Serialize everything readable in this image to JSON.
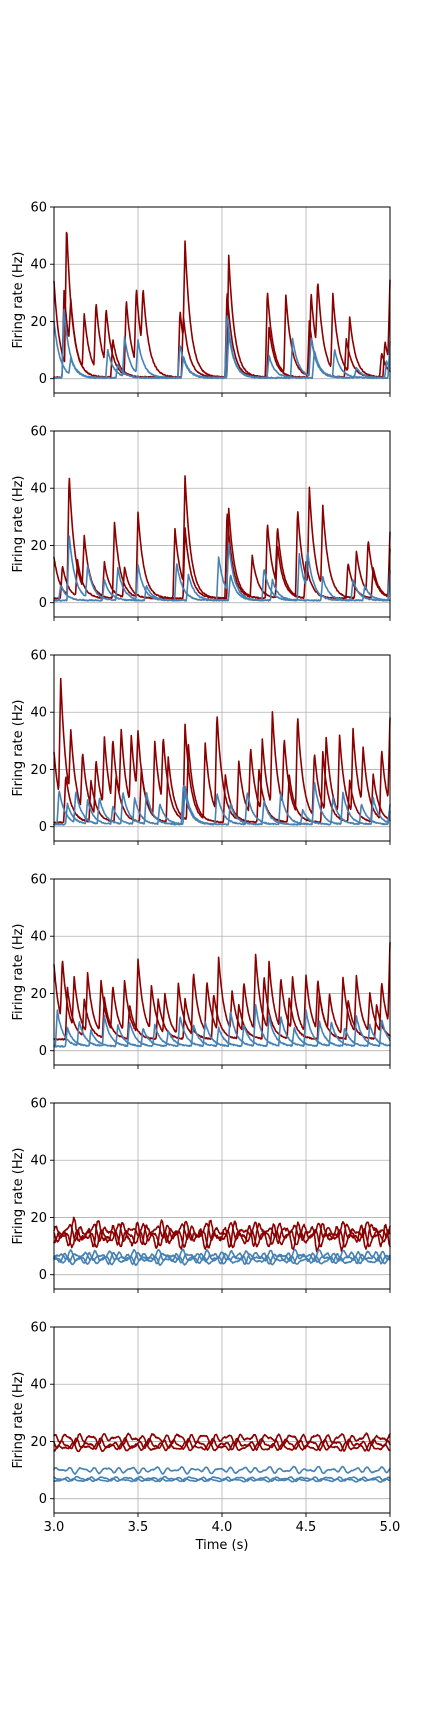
{
  "figure": {
    "xlabel": "Time (s)"
  },
  "colors": {
    "excitatory": "#8b0000",
    "inhibitory": "#4682b4"
  },
  "chart_data": [
    {
      "type": "line",
      "ylabel": "Firing rate (Hz)",
      "xlim": [
        3.0,
        5.0
      ],
      "ylim": [
        -5,
        60
      ],
      "xticks": [
        3.0,
        3.5,
        4.0,
        4.5,
        5.0
      ],
      "xtick_labels": [
        "3.0",
        "3.5",
        "4.0",
        "4.5",
        "5.0"
      ],
      "yticks": [
        0,
        20,
        40,
        60
      ],
      "ytick_labels": [
        "0",
        "20",
        "40",
        "60"
      ],
      "grid": true,
      "series": [
        {
          "color": "#8b0000",
          "baseline": 0.5,
          "x": [
            3.0,
            3.075,
            3.18,
            3.25,
            3.31,
            3.43,
            3.49,
            3.53,
            3.75,
            3.78,
            4.04,
            4.27,
            4.38,
            4.53,
            4.57,
            4.66,
            4.76,
            4.97,
            5.0
          ],
          "values": [
            34,
            50,
            20,
            24,
            20,
            27,
            27,
            22,
            24,
            38,
            43,
            31,
            28,
            30,
            25,
            27,
            20,
            13,
            29
          ]
        },
        {
          "color": "#8b0000",
          "baseline": 0.5,
          "x": [
            3.06,
            3.1,
            3.35,
            3.77,
            4.03,
            4.28,
            4.52,
            4.74,
            4.95
          ],
          "values": [
            31,
            18,
            14,
            22,
            31,
            18,
            20,
            14,
            9
          ]
        },
        {
          "color": "#4682b4",
          "baseline": 0.3,
          "x": [
            3.06,
            3.32,
            3.42,
            3.5,
            3.75,
            4.03,
            4.42,
            4.53,
            4.67,
            4.98
          ],
          "values": [
            24,
            10,
            14,
            12,
            12,
            23,
            14,
            14,
            10,
            6
          ]
        },
        {
          "color": "#4682b4",
          "baseline": 0.3,
          "x": [
            3.0,
            3.1,
            3.38,
            3.77,
            4.04,
            4.28,
            4.55,
            4.8,
            5.0
          ],
          "values": [
            20,
            6,
            5,
            8,
            16,
            8,
            10,
            4,
            13
          ]
        }
      ]
    },
    {
      "type": "line",
      "ylabel": "Firing rate (Hz)",
      "xlim": [
        3.0,
        5.0
      ],
      "ylim": [
        -5,
        60
      ],
      "xticks": [
        3.0,
        3.5,
        4.0,
        4.5,
        5.0
      ],
      "xtick_labels": [
        "3.0",
        "3.5",
        "4.0",
        "4.5",
        "5.0"
      ],
      "yticks": [
        0,
        20,
        40,
        60
      ],
      "ytick_labels": [
        "0",
        "20",
        "40",
        "60"
      ],
      "grid": true,
      "series": [
        {
          "color": "#8b0000",
          "baseline": 1.5,
          "x": [
            3.0,
            3.09,
            3.18,
            3.36,
            3.5,
            3.72,
            3.78,
            4.04,
            4.27,
            4.33,
            4.45,
            4.52,
            4.6,
            4.8,
            4.87,
            5.0
          ],
          "values": [
            16,
            44,
            20,
            28,
            31,
            26,
            40,
            33,
            28,
            22,
            32,
            36,
            30,
            18,
            20,
            24
          ]
        },
        {
          "color": "#8b0000",
          "baseline": 1.5,
          "x": [
            3.05,
            3.14,
            3.3,
            3.42,
            3.78,
            4.03,
            4.18,
            4.33,
            4.5,
            4.75,
            4.9,
            5.0
          ],
          "values": [
            13,
            14,
            14,
            12,
            26,
            32,
            16,
            20,
            14,
            14,
            12,
            18
          ]
        },
        {
          "color": "#4682b4",
          "baseline": 0.8,
          "x": [
            3.09,
            3.2,
            3.38,
            3.5,
            3.73,
            3.98,
            4.04,
            4.25,
            4.46,
            4.51,
            4.78,
            5.0
          ],
          "values": [
            24,
            12,
            12,
            13,
            14,
            16,
            18,
            12,
            17,
            14,
            8,
            11
          ]
        },
        {
          "color": "#4682b4",
          "baseline": 0.8,
          "x": [
            3.04,
            3.3,
            3.55,
            3.8,
            4.05,
            4.3,
            4.6,
            4.85
          ],
          "values": [
            6,
            8,
            6,
            10,
            10,
            8,
            9,
            6
          ]
        }
      ]
    },
    {
      "type": "line",
      "ylabel": "Firing rate (Hz)",
      "xlim": [
        3.0,
        5.0
      ],
      "ylim": [
        -5,
        60
      ],
      "xticks": [
        3.0,
        3.5,
        4.0,
        4.5,
        5.0
      ],
      "xtick_labels": [
        "3.0",
        "3.5",
        "4.0",
        "4.5",
        "5.0"
      ],
      "yticks": [
        0,
        20,
        40,
        60
      ],
      "ytick_labels": [
        "0",
        "20",
        "40",
        "60"
      ],
      "grid": true,
      "series": [
        {
          "color": "#8b0000",
          "baseline": 1.5,
          "x": [
            3.0,
            3.04,
            3.1,
            3.17,
            3.25,
            3.3,
            3.35,
            3.4,
            3.46,
            3.5,
            3.6,
            3.65,
            3.78,
            3.9,
            3.97,
            4.1,
            4.17,
            4.24,
            4.3,
            4.37,
            4.45,
            4.55,
            4.62,
            4.7,
            4.78,
            4.84,
            4.95,
            5.0
          ],
          "values": [
            26,
            44,
            25,
            22,
            21,
            26,
            24,
            27,
            26,
            24,
            28,
            25,
            35,
            28,
            36,
            22,
            25,
            27,
            35,
            26,
            36,
            24,
            28,
            29,
            31,
            22,
            26,
            32
          ]
        },
        {
          "color": "#8b0000",
          "baseline": 1.5,
          "x": [
            3.07,
            3.22,
            3.37,
            3.52,
            3.68,
            3.8,
            4.02,
            4.22,
            4.4,
            4.6,
            4.76,
            4.9
          ],
          "values": [
            18,
            16,
            18,
            20,
            24,
            28,
            18,
            20,
            18,
            26,
            16,
            18
          ]
        },
        {
          "color": "#4682b4",
          "baseline": 0.8,
          "x": [
            3.03,
            3.13,
            3.27,
            3.41,
            3.55,
            3.77,
            3.97,
            4.15,
            4.35,
            4.55,
            4.72,
            4.9,
            5.0
          ],
          "values": [
            13,
            12,
            10,
            12,
            12,
            15,
            12,
            12,
            12,
            16,
            12,
            10,
            7
          ]
        },
        {
          "color": "#4682b4",
          "baseline": 0.8,
          "x": [
            3.08,
            3.2,
            3.35,
            3.48,
            3.63,
            3.78,
            4.05,
            4.25,
            4.48,
            4.66,
            4.83,
            5.0
          ],
          "values": [
            8,
            9,
            7,
            10,
            8,
            14,
            8,
            9,
            6,
            10,
            8,
            5
          ]
        }
      ]
    },
    {
      "type": "line",
      "ylabel": "Firing rate (Hz)",
      "xlim": [
        3.0,
        5.0
      ],
      "ylim": [
        -5,
        60
      ],
      "xticks": [
        3.0,
        3.5,
        4.0,
        4.5,
        5.0
      ],
      "xtick_labels": [
        "3.0",
        "3.5",
        "4.0",
        "4.5",
        "5.0"
      ],
      "yticks": [
        0,
        20,
        40,
        60
      ],
      "ytick_labels": [
        "0",
        "20",
        "40",
        "60"
      ],
      "grid": true,
      "series": [
        {
          "color": "#8b0000",
          "baseline": 4,
          "x": [
            3.0,
            3.05,
            3.12,
            3.2,
            3.28,
            3.35,
            3.42,
            3.5,
            3.58,
            3.66,
            3.74,
            3.83,
            3.91,
            3.98,
            4.06,
            4.13,
            4.2,
            4.28,
            4.35,
            4.42,
            4.5,
            4.57,
            4.64,
            4.72,
            4.8,
            4.88,
            4.95,
            5.0
          ],
          "values": [
            30,
            26,
            22,
            25,
            22,
            20,
            22,
            30,
            20,
            18,
            22,
            26,
            22,
            30,
            18,
            22,
            31,
            28,
            22,
            23,
            24,
            22,
            17,
            24,
            24,
            18,
            22,
            33
          ]
        },
        {
          "color": "#8b0000",
          "baseline": 4,
          "x": [
            3.08,
            3.18,
            3.3,
            3.45,
            3.62,
            3.78,
            3.95,
            4.1,
            4.25,
            4.4,
            4.58,
            4.75,
            4.92
          ],
          "values": [
            22,
            17,
            18,
            16,
            18,
            18,
            20,
            16,
            26,
            18,
            20,
            18,
            16
          ]
        },
        {
          "color": "#4682b4",
          "baseline": 1.5,
          "x": [
            3.02,
            3.15,
            3.3,
            3.45,
            3.6,
            3.75,
            3.9,
            4.05,
            4.2,
            4.35,
            4.5,
            4.65,
            4.8,
            4.95
          ],
          "values": [
            14,
            10,
            12,
            10,
            9,
            12,
            10,
            14,
            16,
            12,
            14,
            10,
            12,
            11
          ]
        },
        {
          "color": "#4682b4",
          "baseline": 1.5,
          "x": [
            3.08,
            3.22,
            3.38,
            3.53,
            3.68,
            3.83,
            3.98,
            4.13,
            4.28,
            4.43,
            4.58,
            4.73,
            4.88
          ],
          "values": [
            8,
            7,
            9,
            8,
            7,
            9,
            8,
            9,
            12,
            8,
            10,
            8,
            9
          ]
        }
      ]
    },
    {
      "type": "line",
      "ylabel": "Firing rate (Hz)",
      "xlim": [
        3.0,
        5.0
      ],
      "ylim": [
        -5,
        60
      ],
      "xticks": [
        3.0,
        3.5,
        4.0,
        4.5,
        5.0
      ],
      "xtick_labels": [
        "3.0",
        "3.5",
        "4.0",
        "4.5",
        "5.0"
      ],
      "yticks": [
        0,
        20,
        40,
        60
      ],
      "ytick_labels": [
        "0",
        "20",
        "40",
        "60"
      ],
      "grid": true,
      "series": [
        {
          "color": "#8b0000",
          "baseline": 15,
          "amplitude": 3,
          "x": [
            3.0,
            5.0
          ],
          "values": [
            15,
            15
          ]
        },
        {
          "color": "#8b0000",
          "baseline": 13,
          "amplitude": 3,
          "x": [
            3.0,
            5.0
          ],
          "values": [
            13,
            13
          ]
        },
        {
          "color": "#8b0000",
          "baseline": 14,
          "amplitude": 5,
          "x": [
            3.0,
            5.0
          ],
          "values": [
            14,
            14
          ]
        },
        {
          "color": "#4682b4",
          "baseline": 6.5,
          "amplitude": 2,
          "x": [
            3.0,
            5.0
          ],
          "values": [
            6.5,
            6.5
          ]
        },
        {
          "color": "#4682b4",
          "baseline": 5,
          "amplitude": 1.5,
          "x": [
            3.0,
            5.0
          ],
          "values": [
            5,
            5
          ]
        },
        {
          "color": "#4682b4",
          "baseline": 6,
          "amplitude": 2,
          "x": [
            3.0,
            5.0
          ],
          "values": [
            6,
            6
          ]
        }
      ]
    },
    {
      "type": "line",
      "ylabel": "Firing rate (Hz)",
      "xlabel": "Time (s)",
      "xlim": [
        3.0,
        5.0
      ],
      "ylim": [
        -5,
        60
      ],
      "xticks": [
        3.0,
        3.5,
        4.0,
        4.5,
        5.0
      ],
      "xtick_labels": [
        "3.0",
        "3.5",
        "4.0",
        "4.5",
        "5.0"
      ],
      "yticks": [
        0,
        20,
        40,
        60
      ],
      "ytick_labels": [
        "0",
        "20",
        "40",
        "60"
      ],
      "grid": true,
      "series": [
        {
          "color": "#8b0000",
          "baseline": 21,
          "amplitude": 2,
          "x": [
            3.0,
            5.0
          ],
          "values": [
            21,
            21
          ]
        },
        {
          "color": "#8b0000",
          "baseline": 19,
          "amplitude": 2,
          "x": [
            3.0,
            5.0
          ],
          "values": [
            19,
            19
          ]
        },
        {
          "color": "#8b0000",
          "baseline": 18,
          "amplitude": 1.5,
          "x": [
            3.0,
            5.0
          ],
          "values": [
            18,
            18
          ]
        },
        {
          "color": "#4682b4",
          "baseline": 10,
          "amplitude": 1.2,
          "x": [
            3.0,
            5.0
          ],
          "values": [
            10,
            10
          ]
        },
        {
          "color": "#4682b4",
          "baseline": 7,
          "amplitude": 0.8,
          "x": [
            3.0,
            5.0
          ],
          "values": [
            7,
            7
          ]
        },
        {
          "color": "#4682b4",
          "baseline": 6.5,
          "amplitude": 0.6,
          "x": [
            3.0,
            5.0
          ],
          "values": [
            6.5,
            6.5
          ]
        }
      ]
    }
  ]
}
